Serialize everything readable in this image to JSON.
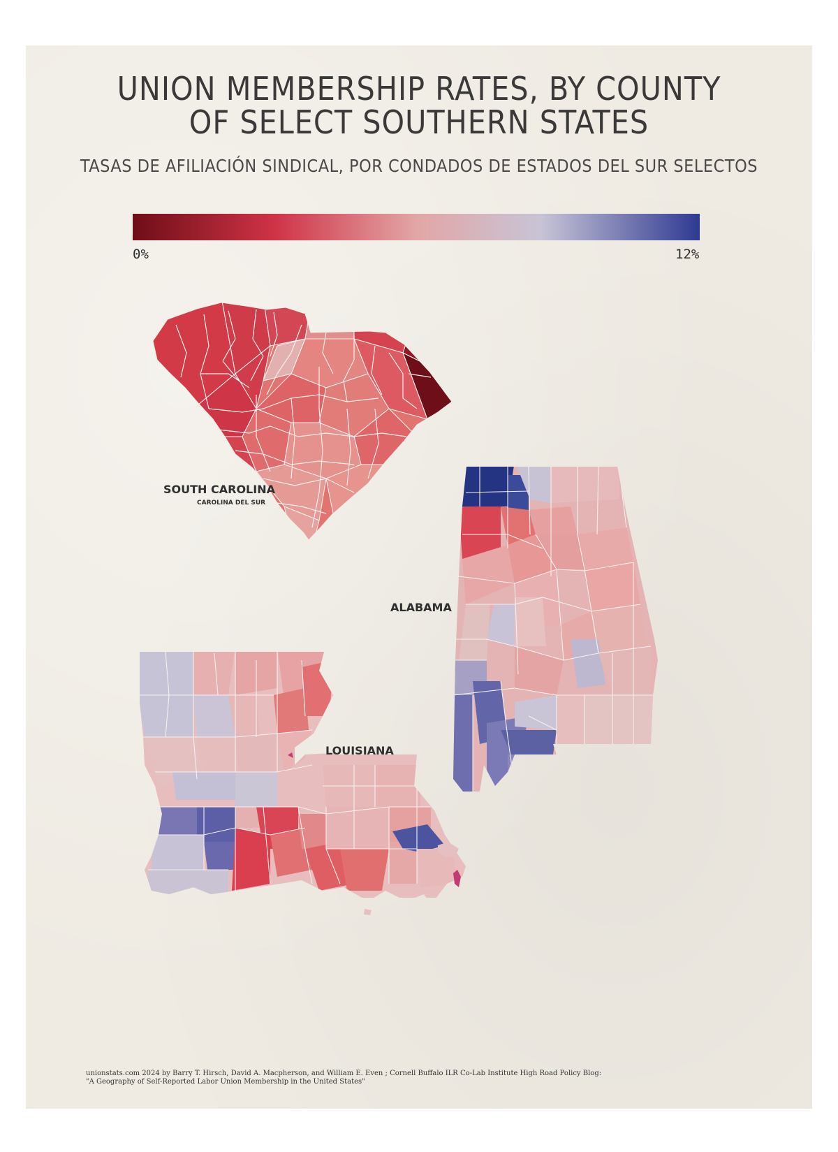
{
  "title": "UNION MEMBERSHIP RATES, BY COUNTY\nOF SELECT SOUTHERN STATES",
  "subtitle": "TASAS DE AFILIACIÓN SINDICAL, POR CONDADOS DE ESTADOS DEL SUR SELECTOS",
  "legend": {
    "min_label": "0%",
    "max_label": "12%",
    "min_value": 0,
    "max_value": 12,
    "colors": [
      "#6e0e17",
      "#cf3346",
      "#e2a6a6",
      "#c8c4d6",
      "#2e3a92"
    ]
  },
  "states": {
    "south_carolina": {
      "name": "SOUTH CAROLINA",
      "alt_name": "CAROLINA DEL SUR"
    },
    "alabama": {
      "name": "ALABAMA"
    },
    "louisiana": {
      "name": "LOUISIANA"
    }
  },
  "source": {
    "line1": "unionstats.com 2024 by Barry T. Hirsch, David A. Macpherson, and William E. Even ; Cornell Buffalo ILR Co-Lab Institute High Road Policy Blog:",
    "line2": "\"A Geography of Self-Reported Labor Union Membership in the United States\""
  }
}
